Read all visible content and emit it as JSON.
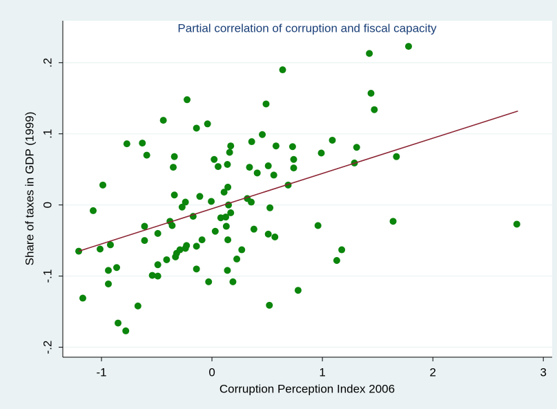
{
  "chart_data": {
    "type": "scatter",
    "title": "Partial correlation of corruption and fiscal capacity",
    "x_label": "Corruption Perception Index 2006",
    "y_label": "Share of taxes in GDP (1999)",
    "color": "#0b850b",
    "x": [
      -1.206,
      -1.169,
      -1.075,
      -1.0125,
      -0.9875,
      -0.9375,
      -0.9375,
      -0.919,
      -0.8625,
      -0.85,
      -0.78,
      -0.77,
      -0.67,
      -0.63,
      -0.61,
      -0.61,
      -0.59,
      -0.54,
      -0.49,
      -0.49,
      -0.49,
      -0.44,
      -0.41,
      -0.38,
      -0.36,
      -0.35,
      -0.34,
      -0.34,
      -0.33,
      -0.32,
      -0.29,
      -0.27,
      -0.24,
      -0.24,
      -0.23,
      -0.225,
      -0.17,
      -0.14,
      -0.14,
      -0.14,
      -0.11,
      -0.09,
      -0.04,
      -0.03,
      -0.006,
      0.02,
      0.03,
      0.056,
      0.08,
      0.11,
      0.125,
      0.13,
      0.14,
      0.14,
      0.144,
      0.144,
      0.15,
      0.16,
      0.17,
      0.17,
      0.19,
      0.225,
      0.27,
      0.32,
      0.34,
      0.356,
      0.36,
      0.38,
      0.41,
      0.456,
      0.49,
      0.51,
      0.51,
      0.52,
      0.525,
      0.56,
      0.57,
      0.58,
      0.64,
      0.69,
      0.73,
      0.74,
      0.74,
      0.78,
      0.96,
      0.99,
      1.09,
      1.13,
      1.175,
      1.29,
      1.31,
      1.425,
      1.44,
      1.47,
      1.64,
      1.67,
      1.78,
      2.76
    ],
    "values": [
      -0.065,
      -0.131,
      -0.008,
      -0.062,
      0.028,
      -0.092,
      -0.111,
      -0.056,
      -0.088,
      -0.166,
      -0.177,
      0.086,
      -0.142,
      0.087,
      -0.03,
      -0.05,
      0.07,
      -0.099,
      -0.084,
      -0.04,
      -0.1,
      0.119,
      -0.077,
      -0.023,
      -0.029,
      0.053,
      0.068,
      0.014,
      -0.073,
      -0.068,
      -0.063,
      -0.003,
      0.004,
      -0.061,
      -0.057,
      0.148,
      -0.016,
      -0.09,
      0.108,
      -0.058,
      0.012,
      -0.049,
      0.114,
      -0.108,
      0.005,
      0.064,
      -0.037,
      0.054,
      -0.018,
      0.018,
      -0.017,
      -0.03,
      0.057,
      -0.092,
      0.025,
      -0.049,
      0.0,
      0.074,
      0.083,
      -0.011,
      -0.108,
      -0.076,
      -0.063,
      0.009,
      0.053,
      0.004,
      0.089,
      -0.034,
      0.045,
      0.099,
      0.142,
      0.055,
      -0.041,
      -0.141,
      -0.004,
      0.042,
      -0.045,
      0.083,
      0.19,
      0.028,
      0.082,
      0.064,
      0.052,
      -0.12,
      -0.029,
      0.073,
      0.091,
      -0.078,
      -0.063,
      0.059,
      0.081,
      0.213,
      0.157,
      0.134,
      -0.023,
      0.068,
      0.223,
      -0.027
    ],
    "fit": {
      "x": [
        -1.206,
        2.77
      ],
      "values": [
        -0.065,
        0.132
      ],
      "color": "#8b2332"
    },
    "xlim": [
      -1.35,
      3.08
    ],
    "ylim": [
      -0.214,
      0.259
    ],
    "xticks": [
      -1,
      0,
      1,
      2,
      3
    ],
    "yticks": [
      {
        "value": -0.2,
        "label": "-.2"
      },
      {
        "value": -0.1,
        "label": "-.1"
      },
      0,
      {
        "value": 0.1,
        "label": ".1"
      },
      {
        "value": 0.2,
        "label": ".2"
      }
    ],
    "grid": true
  }
}
